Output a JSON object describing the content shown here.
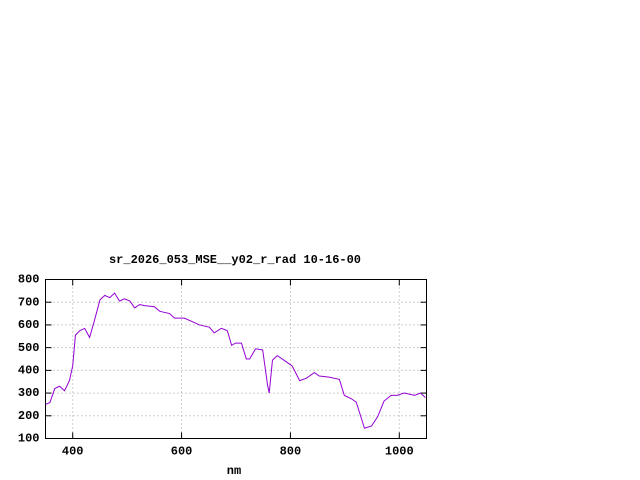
{
  "chart_data": {
    "type": "line",
    "title": "sr_2026_053_MSE__y02_r_rad 10-16-00",
    "x_label": "nm",
    "x": [
      350,
      358,
      367,
      376,
      385,
      394,
      400,
      405,
      413,
      422,
      431,
      440,
      450,
      459,
      468,
      477,
      486,
      495,
      505,
      514,
      523,
      532,
      550,
      560,
      578,
      587,
      605,
      624,
      633,
      651,
      660,
      673,
      684,
      692,
      699,
      710,
      719,
      725,
      736,
      749,
      758,
      761,
      767,
      776,
      794,
      803,
      817,
      829,
      844,
      853,
      871,
      890,
      899,
      912,
      921,
      936,
      949,
      960,
      972,
      985,
      996,
      1009,
      1028,
      1039,
      1048
    ],
    "series": [
      {
        "color": "#9400d3",
        "values": [
          250,
          258,
          320,
          330,
          310,
          355,
          420,
          555,
          575,
          585,
          545,
          620,
          710,
          730,
          720,
          740,
          705,
          715,
          705,
          675,
          690,
          685,
          680,
          660,
          650,
          630,
          630,
          610,
          600,
          590,
          565,
          585,
          575,
          510,
          520,
          520,
          450,
          450,
          495,
          490,
          335,
          300,
          445,
          465,
          435,
          420,
          355,
          365,
          390,
          375,
          370,
          360,
          290,
          275,
          260,
          145,
          155,
          195,
          265,
          290,
          290,
          300,
          290,
          300,
          280
        ]
      }
    ],
    "xlim": [
      350,
      1050
    ],
    "ylim": [
      100,
      800
    ],
    "xticks": [
      400,
      600,
      800,
      1000
    ],
    "yticks": [
      100,
      200,
      300,
      400,
      500,
      600,
      700,
      800
    ],
    "grid": true
  }
}
